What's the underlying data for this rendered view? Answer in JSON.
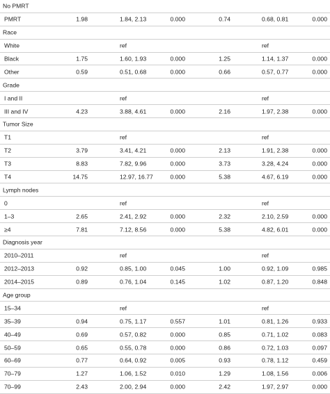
{
  "rows": [
    {
      "type": "category",
      "label": "No PMRT"
    },
    {
      "type": "data",
      "label": "PMRT",
      "c1": "1.98",
      "c2": "1.84, 2.13",
      "c3": "0.000",
      "c4": "0.74",
      "c5": "0.68, 0.81",
      "c6": "0.000"
    },
    {
      "type": "category",
      "label": "Race"
    },
    {
      "type": "data",
      "label": "White",
      "c1": "",
      "c2": "ref",
      "c3": "",
      "c4": "",
      "c5": "ref",
      "c6": ""
    },
    {
      "type": "data",
      "label": "Black",
      "c1": "1.75",
      "c2": "1.60, 1.93",
      "c3": "0.000",
      "c4": "1.25",
      "c5": "1.14, 1.37",
      "c6": "0.000"
    },
    {
      "type": "data",
      "label": "Other",
      "c1": "0.59",
      "c2": "0.51, 0.68",
      "c3": "0.000",
      "c4": "0.66",
      "c5": "0.57, 0.77",
      "c6": "0.000"
    },
    {
      "type": "category",
      "label": "Grade"
    },
    {
      "type": "data",
      "label": "I and II",
      "c1": "",
      "c2": "ref",
      "c3": "",
      "c4": "",
      "c5": "ref",
      "c6": ""
    },
    {
      "type": "data",
      "label": "III and IV",
      "c1": "4.23",
      "c2": "3.88, 4.61",
      "c3": "0.000",
      "c4": "2.16",
      "c5": "1.97, 2.38",
      "c6": "0.000"
    },
    {
      "type": "category",
      "label": "Tumor Size"
    },
    {
      "type": "data",
      "label": "T1",
      "c1": "",
      "c2": "ref",
      "c3": "",
      "c4": "",
      "c5": "ref",
      "c6": ""
    },
    {
      "type": "data",
      "label": "T2",
      "c1": "3.79",
      "c2": "3.41, 4.21",
      "c3": "0.000",
      "c4": "2.13",
      "c5": "1.91, 2.38",
      "c6": "0.000"
    },
    {
      "type": "data",
      "label": "T3",
      "c1": "8.83",
      "c2": "7.82, 9.96",
      "c3": "0.000",
      "c4": "3.73",
      "c5": "3.28, 4.24",
      "c6": "0.000"
    },
    {
      "type": "data",
      "label": "T4",
      "c1": "14.75",
      "c2": "12.97, 16.77",
      "c3": "0.000",
      "c4": "5.38",
      "c5": "4.67, 6.19",
      "c6": "0.000"
    },
    {
      "type": "category",
      "label": "Lymph nodes"
    },
    {
      "type": "data",
      "label": "0",
      "c1": "",
      "c2": "ref",
      "c3": "",
      "c4": "",
      "c5": "ref",
      "c6": ""
    },
    {
      "type": "data",
      "label": "1–3",
      "c1": "2.65",
      "c2": "2.41, 2.92",
      "c3": "0.000",
      "c4": "2.32",
      "c5": "2.10, 2.59",
      "c6": "0.000"
    },
    {
      "type": "data",
      "label": "≥4",
      "c1": "7.81",
      "c2": "7.12, 8.56",
      "c3": "0.000",
      "c4": "5.38",
      "c5": "4.82, 6.01",
      "c6": "0.000"
    },
    {
      "type": "category",
      "label": "Diagnosis year"
    },
    {
      "type": "data",
      "label": "2010–2011",
      "c1": "",
      "c2": "ref",
      "c3": "",
      "c4": "",
      "c5": "ref",
      "c6": ""
    },
    {
      "type": "data",
      "label": "2012–2013",
      "c1": "0.92",
      "c2": "0.85, 1.00",
      "c3": "0.045",
      "c4": "1.00",
      "c5": "0.92, 1.09",
      "c6": "0.985"
    },
    {
      "type": "data",
      "label": "2014–2015",
      "c1": "0.89",
      "c2": "0.76, 1.04",
      "c3": "0.145",
      "c4": "1.02",
      "c5": "0.87, 1.20",
      "c6": "0.848"
    },
    {
      "type": "category",
      "label": "Age group"
    },
    {
      "type": "data",
      "label": "15–34",
      "c1": "",
      "c2": "ref",
      "c3": "",
      "c4": "",
      "c5": "ref",
      "c6": ""
    },
    {
      "type": "data",
      "label": "35–39",
      "c1": "0.94",
      "c2": "0.75, 1.17",
      "c3": "0.557",
      "c4": "1.01",
      "c5": "0.81, 1.26",
      "c6": "0.933"
    },
    {
      "type": "data",
      "label": "40–49",
      "c1": "0.69",
      "c2": "0.57, 0.82",
      "c3": "0.000",
      "c4": "0.85",
      "c5": "0.71, 1.02",
      "c6": "0.083"
    },
    {
      "type": "data",
      "label": "50–59",
      "c1": "0.65",
      "c2": "0.55, 0.78",
      "c3": "0.000",
      "c4": "0.86",
      "c5": "0.72, 1.03",
      "c6": "0.097"
    },
    {
      "type": "data",
      "label": "60–69",
      "c1": "0.77",
      "c2": "0.64, 0.92",
      "c3": "0.005",
      "c4": "0.93",
      "c5": "0.78, 1.12",
      "c6": "0.459"
    },
    {
      "type": "data",
      "label": "70–79",
      "c1": "1.27",
      "c2": "1.06, 1.52",
      "c3": "0.010",
      "c4": "1.29",
      "c5": "1.08, 1.56",
      "c6": "0.006"
    },
    {
      "type": "data",
      "label": "70–99",
      "c1": "2.43",
      "c2": "2.00, 2.94",
      "c3": "0.000",
      "c4": "2.42",
      "c5": "1.97, 2.97",
      "c6": "0.000"
    }
  ]
}
